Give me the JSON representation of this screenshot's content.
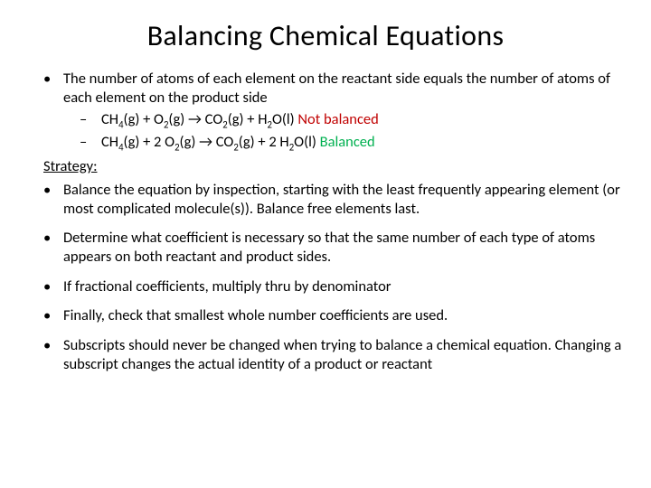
{
  "title": "Balancing Chemical Equations",
  "intro": "The number of atoms of each element on the reactant side equals the number of atoms of each element on the product side",
  "eq1": {
    "ch4": "CH",
    "ch4_sub": "4",
    "g1": "(g) + O",
    "o2_sub": "2",
    "g2": "(g) → CO",
    "co2_sub": "2",
    "g3": "(g) + H",
    "h2_sub": "2",
    "g4": "O(l)   ",
    "status": "Not balanced"
  },
  "eq2": {
    "ch4": "CH",
    "ch4_sub": "4",
    "g1": "(g) + 2 O",
    "o2_sub": "2",
    "g2": "(g) → CO",
    "co2_sub": "2",
    "g3": "(g) +  2 H",
    "h2_sub": "2",
    "g4": "O(l)    ",
    "status": "Balanced"
  },
  "strategy_label": "Strategy:",
  "steps": [
    "Balance the equation by inspection, starting with the least frequently appearing element (or most complicated molecule(s)). Balance free elements last.",
    "Determine what coefficient is necessary so that the same number of each type of atoms appears on both reactant and product sides.",
    " If fractional coefficients, multiply thru by denominator",
    "Finally, check that smallest whole number coefficients are used.",
    "Subscripts should never be changed when trying to balance a chemical equation. Changing a subscript changes the actual identity of a product or reactant"
  ],
  "colors": {
    "not_balanced": "#c00000",
    "balanced": "#00b050",
    "text": "#000000",
    "background": "#ffffff"
  },
  "fonts": {
    "title_size": 32,
    "body_size": 16.5
  }
}
